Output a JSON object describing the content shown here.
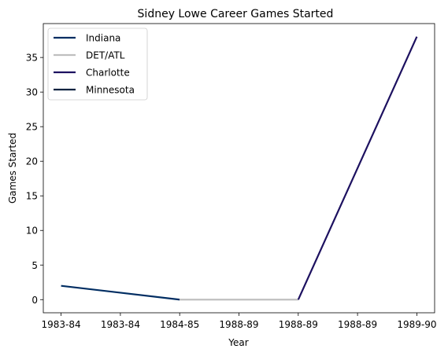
{
  "chart_data": {
    "type": "line",
    "title": "Sidney Lowe Career Games Started",
    "xlabel": "Year",
    "ylabel": "Games Started",
    "x_tick_labels": [
      "1983-84",
      "1983-84",
      "1984-85",
      "1988-89",
      "1988-89",
      "1988-89",
      "1989-90"
    ],
    "xlim": [
      -0.3,
      6.3
    ],
    "ylim": [
      -1.9,
      39.9
    ],
    "y_ticks": [
      0,
      5,
      10,
      15,
      20,
      25,
      30,
      35
    ],
    "grid": false,
    "legend_position": "top-left",
    "series": [
      {
        "name": "Indiana",
        "color": "#002d62",
        "x": [
          0,
          2
        ],
        "y": [
          2,
          0
        ]
      },
      {
        "name": "DET/ATL",
        "color": "#bfbfbf",
        "x": [
          2,
          4
        ],
        "y": [
          0,
          0
        ]
      },
      {
        "name": "Charlotte",
        "color": "#1d1160",
        "x": [
          4,
          6
        ],
        "y": [
          0,
          38
        ]
      },
      {
        "name": "Minnesota",
        "color": "#0c2340",
        "x": [],
        "y": []
      }
    ]
  }
}
